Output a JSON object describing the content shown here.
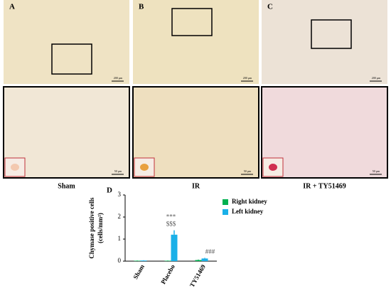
{
  "panels": [
    {
      "label": "A",
      "caption": "Sham",
      "scale_top": "200 µm",
      "scale_bottom": "50 µm"
    },
    {
      "label": "B",
      "caption": "IR",
      "scale_top": "200 µm",
      "scale_bottom": "50 µm"
    },
    {
      "label": "C",
      "caption": "IR + TY51469",
      "scale_top": "200 µm",
      "scale_bottom": "50 µm"
    }
  ],
  "chart_data": {
    "type": "bar",
    "label": "D",
    "y_label": [
      "Chymase positive cells",
      "(cells/mm²)"
    ],
    "categories": [
      "Sham",
      "Placebo",
      "TY51469"
    ],
    "series": [
      {
        "name": "Right kidney",
        "color": "#00b050",
        "values": [
          0.02,
          0.02,
          0.05
        ],
        "errors": [
          0.01,
          0.01,
          0.02
        ]
      },
      {
        "name": "Left kidney",
        "color": "#1ab0e8",
        "values": [
          0.03,
          1.2,
          0.12
        ],
        "errors": [
          0.01,
          0.2,
          0.03
        ]
      }
    ],
    "annotations": [
      [
        "***",
        "$$$"
      ],
      [
        "###"
      ]
    ],
    "ylim": [
      0,
      3
    ],
    "yticks": [
      0,
      1,
      2,
      3
    ]
  }
}
